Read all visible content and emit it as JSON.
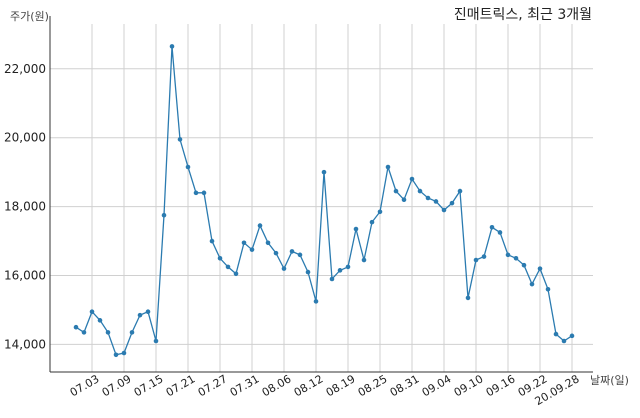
{
  "chart_data": {
    "type": "line",
    "title": "진매트릭스, 최근 3개월",
    "ylabel": "주가(원)",
    "xlabel": "날짜(일)",
    "grid": true,
    "legend": "none",
    "line_color": "#2b7bb0",
    "ylim": [
      13200,
      23300
    ],
    "yticks": [
      14000,
      16000,
      18000,
      20000,
      22000
    ],
    "ytick_labels": [
      "14,000",
      "16,000",
      "18,000",
      "20,000",
      "22,000"
    ],
    "xtick_labels": [
      "07.03",
      "07.09",
      "07.15",
      "07.21",
      "07.27",
      "07.31",
      "08.06",
      "08.12",
      "08.19",
      "08.25",
      "08.31",
      "09.04",
      "09.10",
      "09.16",
      "09.22",
      "20.09.28"
    ],
    "xtick_positions": [
      2,
      6,
      10,
      14,
      18,
      22,
      26,
      30,
      34,
      38,
      42,
      46,
      50,
      54,
      58,
      62
    ],
    "x_start": 0,
    "values": [
      14500,
      14350,
      14950,
      14700,
      14350,
      13700,
      13750,
      14350,
      14850,
      14950,
      14100,
      17750,
      22650,
      19950,
      19150,
      18400,
      18400,
      17000,
      16500,
      16250,
      16050,
      16950,
      16750,
      17450,
      16950,
      16650,
      16200,
      16700,
      16600,
      16100,
      15250,
      19000,
      15900,
      16150,
      16250,
      17350,
      16450,
      17550,
      17850,
      19150,
      18450,
      18200,
      18800,
      18450,
      18250,
      18150,
      17900,
      18100,
      18450,
      15350,
      16450,
      16550,
      17400,
      17250,
      16600,
      16500,
      16300,
      15750,
      16200,
      15600,
      14300,
      14100,
      14250
    ]
  }
}
